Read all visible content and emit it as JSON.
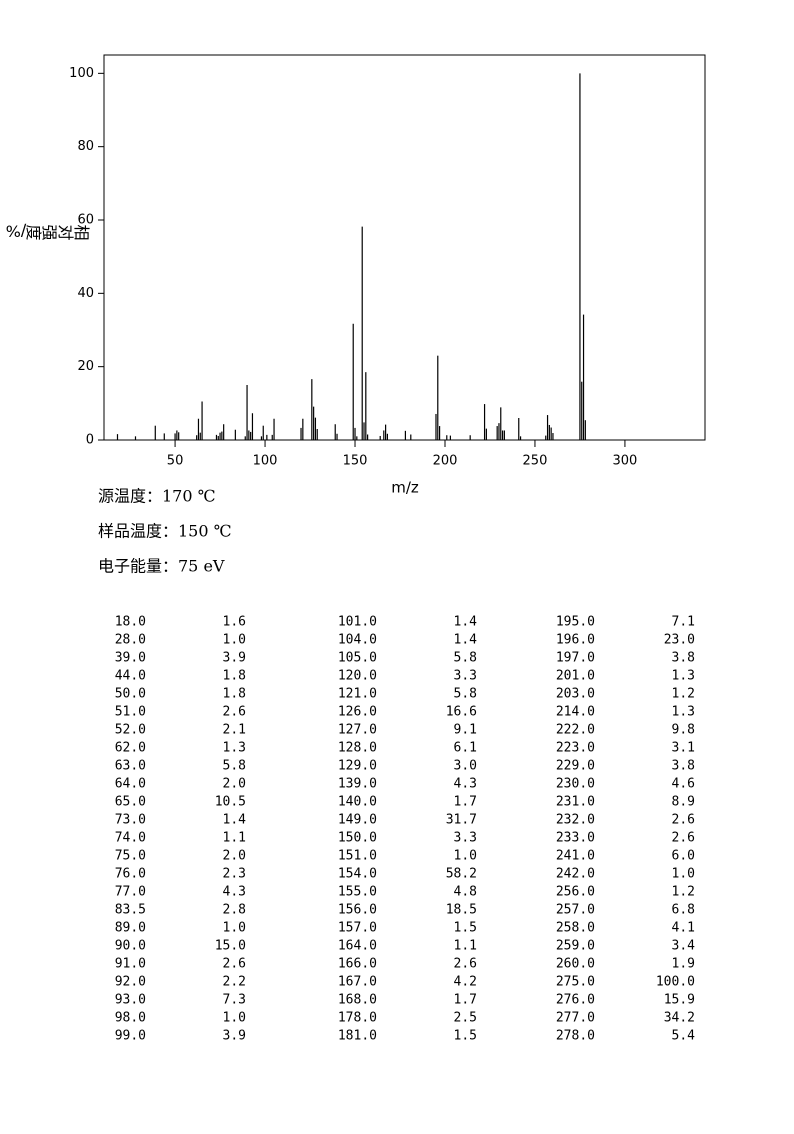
{
  "chart_data": {
    "type": "stick",
    "x_label": "m/z",
    "y_label": "相对强度/%",
    "xlim": [
      10.5,
      344.5
    ],
    "xticks": [
      50,
      100,
      150,
      200,
      250,
      300
    ],
    "ylim": [
      0,
      105
    ],
    "yticks": [
      0,
      20,
      40,
      60,
      80,
      100
    ],
    "color": "#000000",
    "x": [
      18,
      28,
      39,
      44,
      50,
      51,
      52,
      62,
      63,
      64,
      65,
      73,
      74,
      75,
      76,
      77,
      83.5,
      89,
      90,
      91,
      92,
      93,
      98,
      99,
      101,
      104,
      105,
      120,
      121,
      126,
      127,
      128,
      129,
      139,
      140,
      149,
      150,
      151,
      154,
      155,
      156,
      157,
      164,
      166,
      167,
      168,
      178,
      181,
      195,
      196,
      197,
      201,
      203,
      214,
      222,
      223,
      229,
      230,
      231,
      232,
      233,
      241,
      242,
      256,
      257,
      258,
      259,
      260,
      275,
      276,
      277,
      278
    ],
    "x_labels": [
      "18.0",
      "28.0",
      "39.0",
      "44.0",
      "50.0",
      "51.0",
      "52.0",
      "62.0",
      "63.0",
      "64.0",
      "65.0",
      "73.0",
      "74.0",
      "75.0",
      "76.0",
      "77.0",
      "83.5",
      "89.0",
      "90.0",
      "91.0",
      "92.0",
      "93.0",
      "98.0",
      "99.0",
      "101.0",
      "104.0",
      "105.0",
      "120.0",
      "121.0",
      "126.0",
      "127.0",
      "128.0",
      "129.0",
      "139.0",
      "140.0",
      "149.0",
      "150.0",
      "151.0",
      "154.0",
      "155.0",
      "156.0",
      "157.0",
      "164.0",
      "166.0",
      "167.0",
      "168.0",
      "178.0",
      "181.0",
      "195.0",
      "196.0",
      "197.0",
      "201.0",
      "203.0",
      "214.0",
      "222.0",
      "223.0",
      "229.0",
      "230.0",
      "231.0",
      "232.0",
      "233.0",
      "241.0",
      "242.0",
      "256.0",
      "257.0",
      "258.0",
      "259.0",
      "260.0",
      "275.0",
      "276.0",
      "277.0",
      "278.0"
    ],
    "values": [
      1.6,
      1.0,
      3.9,
      1.8,
      1.8,
      2.6,
      2.1,
      1.3,
      5.8,
      2.0,
      10.5,
      1.4,
      1.1,
      2.0,
      2.3,
      4.3,
      2.8,
      1.0,
      15.0,
      2.6,
      2.2,
      7.3,
      1.0,
      3.9,
      1.4,
      1.4,
      5.8,
      3.3,
      5.8,
      16.6,
      9.1,
      6.1,
      3.0,
      4.3,
      1.7,
      31.7,
      3.3,
      1.0,
      58.2,
      4.8,
      18.5,
      1.5,
      1.1,
      2.6,
      4.2,
      1.7,
      2.5,
      1.5,
      7.1,
      23.0,
      3.8,
      1.3,
      1.2,
      1.3,
      9.8,
      3.1,
      3.8,
      4.6,
      8.9,
      2.6,
      2.6,
      6.0,
      1.0,
      1.2,
      6.8,
      4.1,
      3.4,
      1.9,
      100.0,
      15.9,
      34.2,
      5.4
    ],
    "value_labels": [
      "1.6",
      "1.0",
      "3.9",
      "1.8",
      "1.8",
      "2.6",
      "2.1",
      "1.3",
      "5.8",
      "2.0",
      "10.5",
      "1.4",
      "1.1",
      "2.0",
      "2.3",
      "4.3",
      "2.8",
      "1.0",
      "15.0",
      "2.6",
      "2.2",
      "7.3",
      "1.0",
      "3.9",
      "1.4",
      "1.4",
      "5.8",
      "3.3",
      "5.8",
      "16.6",
      "9.1",
      "6.1",
      "3.0",
      "4.3",
      "1.7",
      "31.7",
      "3.3",
      "1.0",
      "58.2",
      "4.8",
      "18.5",
      "1.5",
      "1.1",
      "2.6",
      "4.2",
      "1.7",
      "2.5",
      "1.5",
      "7.1",
      "23.0",
      "3.8",
      "1.3",
      "1.2",
      "1.3",
      "9.8",
      "3.1",
      "3.8",
      "4.6",
      "8.9",
      "2.6",
      "2.6",
      "6.0",
      "1.0",
      "1.2",
      "6.8",
      "4.1",
      "3.4",
      "1.9",
      "100.0",
      "15.9",
      "34.2",
      "5.4"
    ],
    "conditions": [
      "源温度：170 ℃",
      "样品温度：150 ℃",
      "电子能量：75 eV"
    ]
  }
}
